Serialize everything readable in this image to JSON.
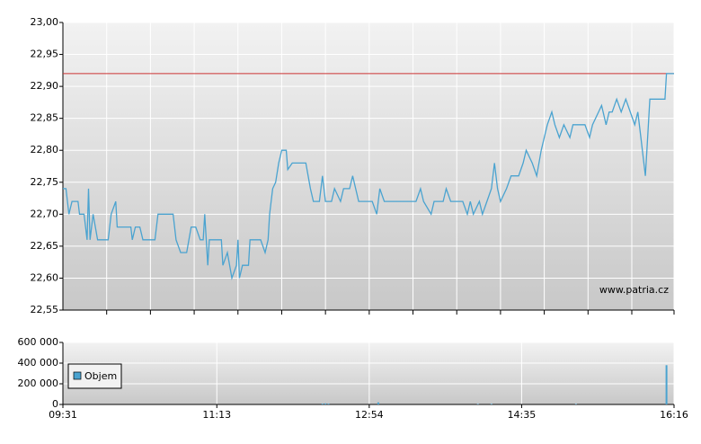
{
  "chart_data": [
    {
      "type": "line",
      "watermark": "www.patria.cz",
      "xlim": [
        571,
        976
      ],
      "ylim": [
        22.55,
        23.0
      ],
      "yticks": [
        {
          "value": 22.55,
          "label": "22,55"
        },
        {
          "value": 22.6,
          "label": "22,60"
        },
        {
          "value": 22.65,
          "label": "22,65"
        },
        {
          "value": 22.7,
          "label": "22,70"
        },
        {
          "value": 22.75,
          "label": "22,75"
        },
        {
          "value": 22.8,
          "label": "22,80"
        },
        {
          "value": 22.85,
          "label": "22,85"
        },
        {
          "value": 22.9,
          "label": "22,90"
        },
        {
          "value": 22.95,
          "label": "22,95"
        },
        {
          "value": 23.0,
          "label": "23,00"
        }
      ],
      "xgrid": [
        600,
        629,
        658,
        687,
        716,
        745,
        774,
        803,
        832,
        861,
        890,
        919,
        948,
        976
      ],
      "reference_line": 22.92,
      "reference_color": "#cc3333",
      "series": [
        {
          "color": "#4aa3d0",
          "x": [
            571,
            573,
            575,
            577,
            581,
            582,
            585,
            587,
            588,
            589,
            591,
            594,
            601,
            603,
            606,
            607,
            616,
            617,
            619,
            622,
            624,
            632,
            634,
            644,
            646,
            649,
            653,
            656,
            659,
            662,
            664,
            665,
            667,
            668,
            676,
            677,
            680,
            683,
            686,
            687,
            688,
            690,
            694,
            695,
            702,
            705,
            707,
            708,
            710,
            712,
            714,
            716,
            719,
            720,
            723,
            732,
            735,
            737,
            741,
            743,
            745,
            749,
            751,
            755,
            757,
            761,
            763,
            767,
            776,
            779,
            781,
            784,
            805,
            808,
            810,
            815,
            817,
            823,
            825,
            828,
            836,
            839,
            841,
            843,
            847,
            849,
            852,
            855,
            857,
            859,
            861,
            865,
            868,
            873,
            876,
            878,
            882,
            885,
            888,
            890,
            892,
            895,
            897,
            900,
            903,
            907,
            909,
            917,
            920,
            922,
            926,
            928,
            931,
            933,
            935,
            938,
            941,
            944,
            947,
            950,
            952,
            954,
            957,
            958,
            960,
            970,
            971,
            976
          ],
          "values": [
            22.74,
            22.74,
            22.7,
            22.72,
            22.72,
            22.7,
            22.7,
            22.66,
            22.74,
            22.66,
            22.7,
            22.66,
            22.66,
            22.7,
            22.72,
            22.68,
            22.68,
            22.66,
            22.68,
            22.68,
            22.66,
            22.66,
            22.7,
            22.7,
            22.66,
            22.64,
            22.64,
            22.68,
            22.68,
            22.66,
            22.66,
            22.7,
            22.62,
            22.66,
            22.66,
            22.62,
            22.64,
            22.6,
            22.62,
            22.66,
            22.6,
            22.62,
            22.62,
            22.66,
            22.66,
            22.64,
            22.66,
            22.7,
            22.74,
            22.75,
            22.78,
            22.8,
            22.8,
            22.77,
            22.78,
            22.78,
            22.74,
            22.72,
            22.72,
            22.76,
            22.72,
            22.72,
            22.74,
            22.72,
            22.74,
            22.74,
            22.76,
            22.72,
            22.72,
            22.7,
            22.74,
            22.72,
            22.72,
            22.74,
            22.72,
            22.7,
            22.72,
            22.72,
            22.74,
            22.72,
            22.72,
            22.7,
            22.72,
            22.7,
            22.72,
            22.7,
            22.72,
            22.74,
            22.78,
            22.74,
            22.72,
            22.74,
            22.76,
            22.76,
            22.78,
            22.8,
            22.78,
            22.76,
            22.8,
            22.82,
            22.84,
            22.86,
            22.84,
            22.82,
            22.84,
            22.82,
            22.84,
            22.84,
            22.82,
            22.84,
            22.86,
            22.87,
            22.84,
            22.86,
            22.86,
            22.88,
            22.86,
            22.88,
            22.86,
            22.84,
            22.86,
            22.82,
            22.76,
            22.8,
            22.88,
            22.88,
            22.92,
            22.92
          ]
        }
      ]
    },
    {
      "type": "bar",
      "xlim": [
        571,
        976
      ],
      "ylim": [
        0,
        600000
      ],
      "yticks": [
        0,
        {
          "value": 200000,
          "label": "200 000"
        },
        {
          "value": 400000,
          "label": "400 000"
        },
        {
          "value": 600000,
          "label": "600 000"
        }
      ],
      "xticks": [
        {
          "value": 571,
          "label": "09:31"
        },
        {
          "value": 673,
          "label": "11:13"
        },
        {
          "value": 774,
          "label": "12:54"
        },
        {
          "value": 875,
          "label": "14:35"
        },
        {
          "value": 976,
          "label": "16:16"
        }
      ],
      "legend": "top-left",
      "series": [
        {
          "name": "Objem",
          "color": "#4aa3d0",
          "x": [
            743,
            745,
            747,
            780,
            846,
            855,
            911,
            971
          ],
          "values": [
            8000,
            10000,
            8000,
            20000,
            5000,
            6000,
            5000,
            380000
          ]
        }
      ]
    }
  ]
}
